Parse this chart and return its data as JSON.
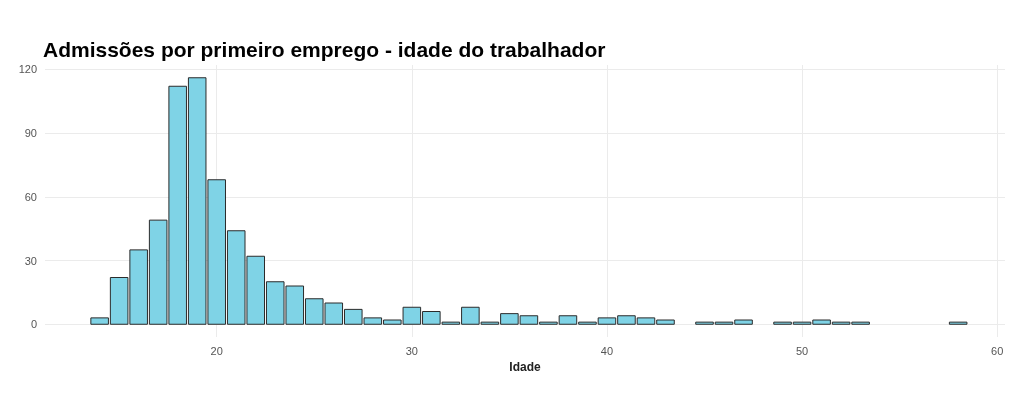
{
  "chart_data": {
    "type": "histogram",
    "title": "Admissões por primeiro emprego - idade do trabalhador",
    "xlabel": "Idade",
    "bins": [
      13.5,
      14.5,
      15.5,
      16.5,
      17.5,
      18.5,
      19.5,
      20.5,
      21.5,
      22.5,
      23.5,
      24.5,
      25.5,
      26.5,
      27.5,
      28.5,
      29.5,
      30.5,
      31.5,
      32.5,
      33.5,
      34.5,
      35.5,
      36.5,
      37.5,
      38.5,
      39.5,
      40.5,
      41.5,
      42.5,
      43.5,
      44.5,
      45.5,
      46.5,
      47.5,
      48.5,
      49.5,
      50.5,
      51.5,
      52.5,
      53.5,
      54.5,
      55.5,
      56.5,
      57.5,
      58.5
    ],
    "values": [
      3,
      22,
      35,
      49,
      112,
      116,
      68,
      44,
      32,
      20,
      18,
      12,
      10,
      7,
      3,
      2,
      8,
      6,
      1,
      8,
      1,
      5,
      4,
      1,
      4,
      1,
      3,
      4,
      3,
      2,
      null,
      1,
      1,
      2,
      null,
      1,
      1,
      2,
      1,
      1,
      null,
      null,
      null,
      null,
      1
    ],
    "color": "#7fd3e6",
    "xlim": [
      11.2,
      60.4
    ],
    "xticks": [
      20,
      30,
      40,
      50,
      60
    ],
    "ylim": [
      -6,
      122
    ],
    "yticks": [
      0,
      30,
      60,
      90,
      120
    ],
    "grid": true
  }
}
